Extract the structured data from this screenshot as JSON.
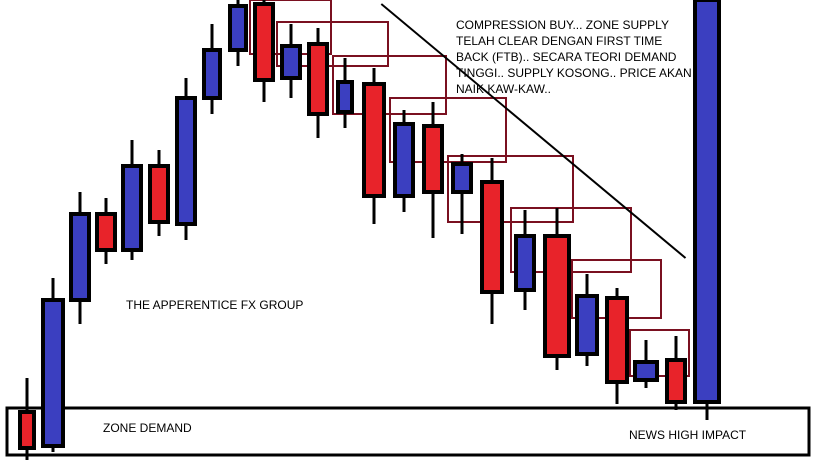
{
  "colors": {
    "bull": "#3b3fc0",
    "bear": "#e8232a",
    "outline": "#000000",
    "supply_box": "#7a1020",
    "trendline": "#000000"
  },
  "chart_data": {
    "type": "candlestick",
    "title": "",
    "xlabel": "",
    "ylabel": "",
    "ylim": [
      0,
      460
    ],
    "candles": [
      {
        "dir": "bear",
        "open": 48,
        "close": 12,
        "high": 82,
        "low": 0
      },
      {
        "dir": "bull",
        "open": 14,
        "close": 160,
        "high": 182,
        "low": 8
      },
      {
        "dir": "bull",
        "open": 160,
        "close": 246,
        "high": 268,
        "low": 136
      },
      {
        "dir": "bear",
        "open": 246,
        "close": 210,
        "high": 262,
        "low": 196
      },
      {
        "dir": "bull",
        "open": 210,
        "close": 294,
        "high": 320,
        "low": 200
      },
      {
        "dir": "bear",
        "open": 294,
        "close": 238,
        "high": 310,
        "low": 224
      },
      {
        "dir": "bull",
        "open": 236,
        "close": 362,
        "high": 382,
        "low": 220
      },
      {
        "dir": "bull",
        "open": 362,
        "close": 410,
        "high": 436,
        "low": 346
      },
      {
        "dir": "bull",
        "open": 410,
        "close": 454,
        "high": 460,
        "low": 394
      },
      {
        "dir": "bear",
        "open": 456,
        "close": 380,
        "high": 460,
        "low": 358
      },
      {
        "dir": "bull",
        "open": 382,
        "close": 414,
        "high": 436,
        "low": 362
      },
      {
        "dir": "bear",
        "open": 416,
        "close": 346,
        "high": 432,
        "low": 322
      },
      {
        "dir": "bull",
        "open": 348,
        "close": 378,
        "high": 402,
        "low": 332
      },
      {
        "dir": "bear",
        "open": 376,
        "close": 264,
        "high": 392,
        "low": 236
      },
      {
        "dir": "bull",
        "open": 264,
        "close": 336,
        "high": 350,
        "low": 248
      },
      {
        "dir": "bear",
        "open": 334,
        "close": 268,
        "high": 358,
        "low": 222
      },
      {
        "dir": "bull",
        "open": 268,
        "close": 296,
        "high": 306,
        "low": 226
      },
      {
        "dir": "bear",
        "open": 278,
        "close": 168,
        "high": 302,
        "low": 136
      },
      {
        "dir": "bull",
        "open": 170,
        "close": 224,
        "high": 250,
        "low": 150
      },
      {
        "dir": "bear",
        "open": 224,
        "close": 104,
        "high": 252,
        "low": 90
      },
      {
        "dir": "bull",
        "open": 106,
        "close": 164,
        "high": 186,
        "low": 94
      },
      {
        "dir": "bear",
        "open": 162,
        "close": 78,
        "high": 172,
        "low": 56
      },
      {
        "dir": "bull",
        "open": 80,
        "close": 98,
        "high": 120,
        "low": 72
      },
      {
        "dir": "bear",
        "open": 100,
        "close": 58,
        "high": 124,
        "low": 50
      },
      {
        "dir": "bull",
        "open": 58,
        "close": 460,
        "high": 460,
        "low": 40
      }
    ],
    "supply_zones": [
      {
        "candle": 9,
        "top": 460,
        "bottom": 406,
        "to_candle": 11
      },
      {
        "candle": 10,
        "top": 438,
        "bottom": 394,
        "to_candle": 13
      },
      {
        "candle": 12,
        "top": 404,
        "bottom": 346,
        "to_candle": 15
      },
      {
        "candle": 14,
        "top": 362,
        "bottom": 298,
        "to_candle": 17
      },
      {
        "candle": 16,
        "top": 304,
        "bottom": 238,
        "to_candle": 19
      },
      {
        "candle": 18,
        "top": 252,
        "bottom": 188,
        "to_candle": 21
      },
      {
        "candle": 20,
        "top": 200,
        "bottom": 142,
        "to_candle": 22
      },
      {
        "candle": 22,
        "top": 130,
        "bottom": 84,
        "to_candle": 23
      }
    ],
    "trendline": {
      "from": [
        0.465,
        456
      ],
      "to": [
        0.836,
        202
      ]
    },
    "annotations": {
      "note": "COMPRESSION BUY... ZONE SUPPLY TELAH CLEAR DENGAN FIRST TIME BACK (FTB).. SECARA TEORI DEMAND TINGGI.. SUPPLY KOSONG.. PRICE AKAN NAIK KAW-KAW..",
      "brand": "THE APPERENTICE FX GROUP",
      "zone": "ZONE DEMAND",
      "news": "NEWS HIGH IMPACT"
    }
  }
}
